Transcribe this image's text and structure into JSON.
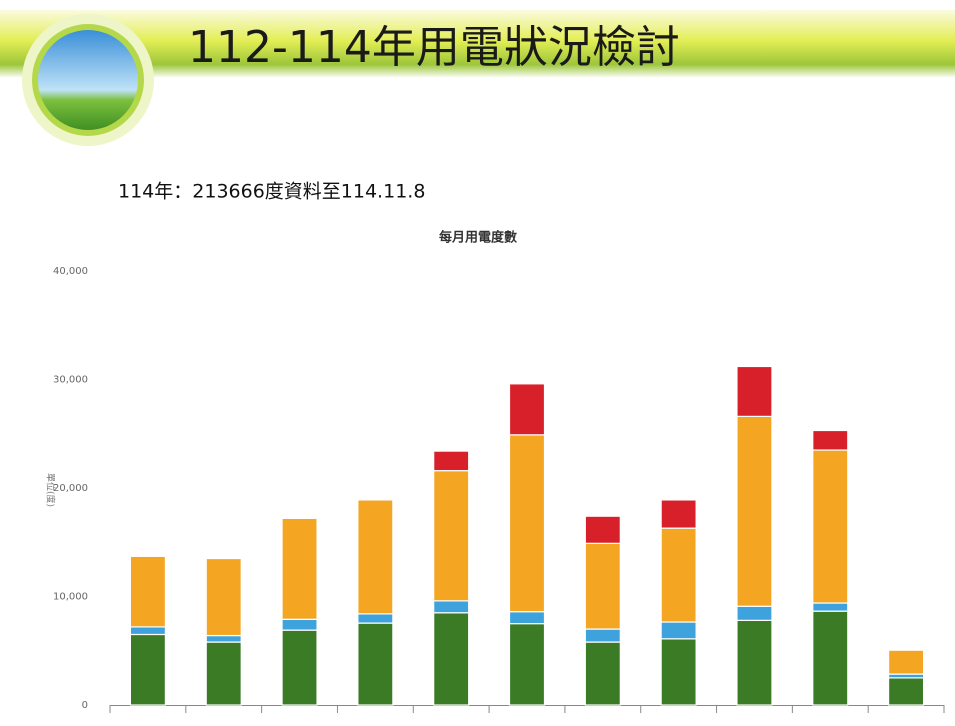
{
  "header": {
    "title": "112-114年用電狀況檢討"
  },
  "subtitle": "114年：213666度資料至114.11.8",
  "chart_data": {
    "type": "stacked-bar",
    "title": "每月用電度數",
    "ylabel": "單位(度)",
    "categories": [
      null,
      null,
      null,
      null,
      null,
      null,
      null,
      null,
      null,
      null,
      null
    ],
    "series": [
      {
        "color": "#3b7b26",
        "values": [
          6500,
          5800,
          6900,
          7550,
          8500,
          7500,
          5800,
          6100,
          7800,
          8650,
          2500
        ]
      },
      {
        "color": "#3ea3dc",
        "values": [
          700,
          600,
          1000,
          850,
          1100,
          1100,
          1200,
          1550,
          1300,
          750,
          350
        ]
      },
      {
        "color": "#f4a623",
        "values": [
          6500,
          7100,
          9300,
          10500,
          12000,
          16300,
          7900,
          8650,
          17500,
          14100,
          2200
        ]
      },
      {
        "color": "#d8202b",
        "values": [
          0,
          0,
          0,
          0,
          1800,
          4700,
          2500,
          2600,
          4600,
          1800,
          0
        ]
      }
    ],
    "ylim": [
      0,
      40000
    ],
    "yticks": [
      0,
      {
        "value": 10000,
        "label": "10,000"
      },
      {
        "value": 20000,
        "label": "20,000"
      },
      {
        "value": 30000,
        "label": "30,000"
      },
      {
        "value": 40000,
        "label": "40,000"
      }
    ],
    "grid": false
  }
}
